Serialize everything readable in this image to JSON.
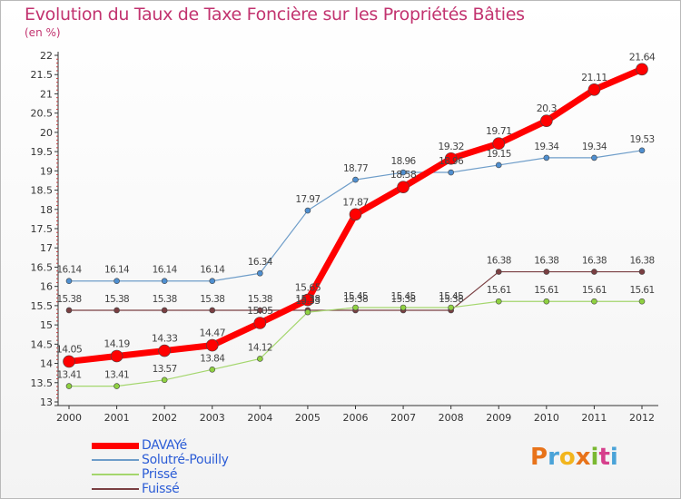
{
  "chart_data": {
    "type": "line",
    "title": "Evolution du Taux de Taxe Foncière sur les Propriétés Bâties",
    "subtitle": "(en %)",
    "xlabel": "",
    "ylabel": "",
    "ylim": [
      13,
      22
    ],
    "yticks": [
      "13",
      "13.5",
      "14",
      "14.5",
      "15",
      "15.5",
      "16",
      "16.5",
      "17",
      "17.5",
      "18",
      "18.5",
      "19",
      "19.5",
      "20",
      "20.5",
      "21",
      "21.5",
      "22"
    ],
    "categories": [
      "2000",
      "2001",
      "2002",
      "2003",
      "2004",
      "2005",
      "2006",
      "2007",
      "2008",
      "2009",
      "2010",
      "2011",
      "2012"
    ],
    "grid": false,
    "legend_position": "bottom-left",
    "series": [
      {
        "name": "Fuissé",
        "color": "#7a3f42",
        "values": [
          15.38,
          15.38,
          15.38,
          15.38,
          15.38,
          15.38,
          15.38,
          15.38,
          15.38,
          16.38,
          16.38,
          16.38,
          16.38
        ],
        "labels": [
          "15.38",
          "15.38",
          "15.38",
          "15.38",
          "15.38",
          "15.38",
          "15.38",
          "15.38",
          "15.38",
          "16.38",
          "16.38",
          "16.38",
          "16.38"
        ]
      },
      {
        "name": "Prissé",
        "color": "#a4d66d",
        "values": [
          13.41,
          13.41,
          13.57,
          13.84,
          14.12,
          15.33,
          15.45,
          15.45,
          15.45,
          15.61,
          15.61,
          15.61,
          15.61
        ],
        "labels": [
          "13.41",
          "13.41",
          "13.57",
          "13.84",
          "14.12",
          "15.33",
          "15.45",
          "15.45",
          "15.45",
          "15.61",
          "15.61",
          "15.61",
          "15.61"
        ]
      },
      {
        "name": "Solutré-Pouilly",
        "color": "#6e9dc9",
        "values": [
          16.14,
          16.14,
          16.14,
          16.14,
          16.34,
          17.97,
          18.77,
          18.96,
          18.96,
          19.15,
          19.34,
          19.34,
          19.53
        ],
        "labels": [
          "16.14",
          "16.14",
          "16.14",
          "16.14",
          "16.34",
          "17.97",
          "18.77",
          "18.96",
          "18.96",
          "19.15",
          "19.34",
          "19.34",
          "19.53"
        ]
      },
      {
        "name": "DAVAYé",
        "color": "#ff0000",
        "values": [
          14.05,
          14.19,
          14.33,
          14.47,
          15.05,
          15.65,
          17.87,
          18.58,
          19.32,
          19.71,
          20.3,
          21.11,
          21.64
        ],
        "labels": [
          "14.05",
          "14.19",
          "14.33",
          "14.47",
          "15.05",
          "15.65",
          "17.87",
          "18.58",
          "19.32",
          "19.71",
          "20.3",
          "21.11",
          "21.64"
        ]
      }
    ]
  },
  "legend": [
    "DAVAYé",
    "Solutré-Pouilly",
    "Prissé",
    "Fuissé"
  ],
  "brand": {
    "letters": [
      "P",
      "r",
      "o",
      "x",
      "i",
      "t",
      "i"
    ],
    "colors": [
      "#e8731a",
      "#4aa3d8",
      "#f2b51d",
      "#e8731a",
      "#7ab831",
      "#d63f8c",
      "#4aa3d8"
    ]
  }
}
